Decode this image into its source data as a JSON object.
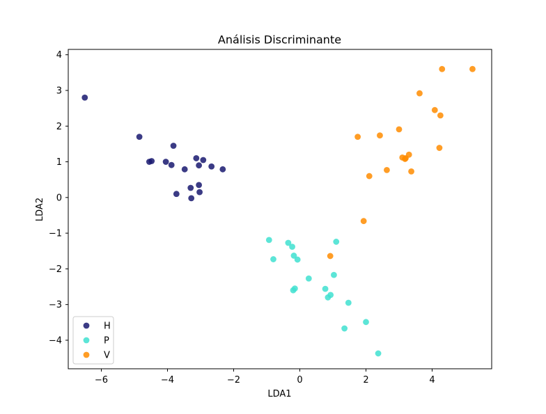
{
  "chart_data": {
    "type": "scatter",
    "title": "Análisis Discriminante",
    "xlabel": "LDA1",
    "ylabel": "LDA2",
    "xlim": [
      -7.0,
      5.8
    ],
    "ylim": [
      -4.8,
      4.15
    ],
    "xticks": [
      -6,
      -4,
      -2,
      0,
      2,
      4
    ],
    "xtick_labels": [
      "−6",
      "−4",
      "−2",
      "0",
      "2",
      "4"
    ],
    "yticks": [
      -4,
      -3,
      -2,
      -1,
      0,
      1,
      2,
      3,
      4
    ],
    "ytick_labels": [
      "−4",
      "−3",
      "−2",
      "−1",
      "0",
      "1",
      "2",
      "3",
      "4"
    ],
    "grid": false,
    "legend_position": "lower-left",
    "series": [
      {
        "name": "H",
        "color": "#191970",
        "points": [
          [
            -6.5,
            2.8
          ],
          [
            -4.85,
            1.7
          ],
          [
            -4.55,
            1.0
          ],
          [
            -4.48,
            1.02
          ],
          [
            -4.05,
            1.0
          ],
          [
            -3.88,
            0.91
          ],
          [
            -3.82,
            1.45
          ],
          [
            -3.73,
            0.1
          ],
          [
            -3.48,
            0.79
          ],
          [
            -3.3,
            0.27
          ],
          [
            -3.28,
            -0.02
          ],
          [
            -3.13,
            1.1
          ],
          [
            -3.05,
            0.9
          ],
          [
            -3.05,
            0.35
          ],
          [
            -3.03,
            0.15
          ],
          [
            -2.92,
            1.05
          ],
          [
            -2.67,
            0.87
          ],
          [
            -2.33,
            0.79
          ]
        ]
      },
      {
        "name": "P",
        "color": "#40e0d0",
        "points": [
          [
            -0.93,
            -1.19
          ],
          [
            -0.8,
            -1.73
          ],
          [
            -0.35,
            -1.27
          ],
          [
            -0.23,
            -1.38
          ],
          [
            -0.18,
            -1.63
          ],
          [
            -0.07,
            -1.74
          ],
          [
            -0.2,
            -2.6
          ],
          [
            -0.15,
            -2.55
          ],
          [
            0.27,
            -2.27
          ],
          [
            0.77,
            -2.56
          ],
          [
            0.85,
            -2.8
          ],
          [
            0.93,
            -2.73
          ],
          [
            1.03,
            -2.17
          ],
          [
            1.1,
            -1.24
          ],
          [
            1.47,
            -2.95
          ],
          [
            1.35,
            -3.67
          ],
          [
            2.0,
            -3.49
          ],
          [
            2.37,
            -4.37
          ]
        ]
      },
      {
        "name": "V",
        "color": "#ff8c00",
        "points": [
          [
            0.92,
            -1.64
          ],
          [
            1.93,
            -0.66
          ],
          [
            2.1,
            0.6
          ],
          [
            1.75,
            1.7
          ],
          [
            2.42,
            1.74
          ],
          [
            2.63,
            0.77
          ],
          [
            3.0,
            1.91
          ],
          [
            3.1,
            1.12
          ],
          [
            3.18,
            1.08
          ],
          [
            3.2,
            1.1
          ],
          [
            3.3,
            1.2
          ],
          [
            3.37,
            0.73
          ],
          [
            3.62,
            2.92
          ],
          [
            4.08,
            2.45
          ],
          [
            4.22,
            1.39
          ],
          [
            4.25,
            2.3
          ],
          [
            4.3,
            3.6
          ],
          [
            5.22,
            3.6
          ]
        ]
      }
    ]
  }
}
